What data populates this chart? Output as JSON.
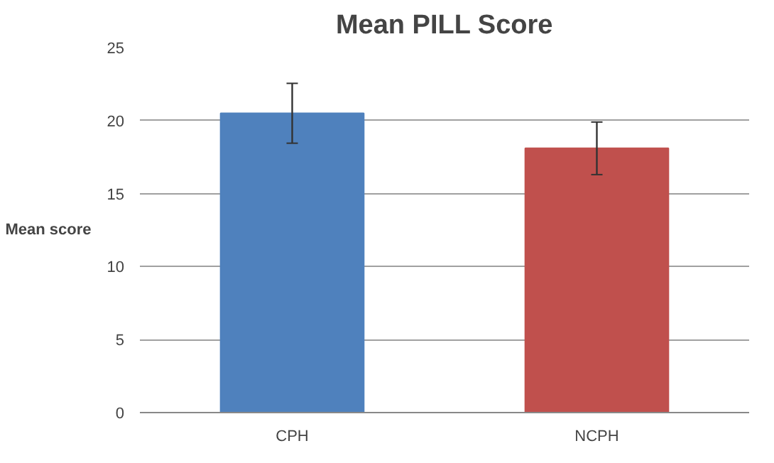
{
  "chart_data": {
    "type": "bar",
    "title": "Mean PILL Score",
    "ylabel": "Mean score",
    "categories": [
      "CPH",
      "NCPH"
    ],
    "values": [
      20.5,
      18.1
    ],
    "colors": [
      "#4f81bd",
      "#c0504d"
    ],
    "errors": [
      2.05,
      1.8
    ],
    "ylim": [
      0,
      25
    ],
    "yticks": [
      0,
      5,
      10,
      15,
      20,
      25
    ],
    "grid": "y"
  }
}
